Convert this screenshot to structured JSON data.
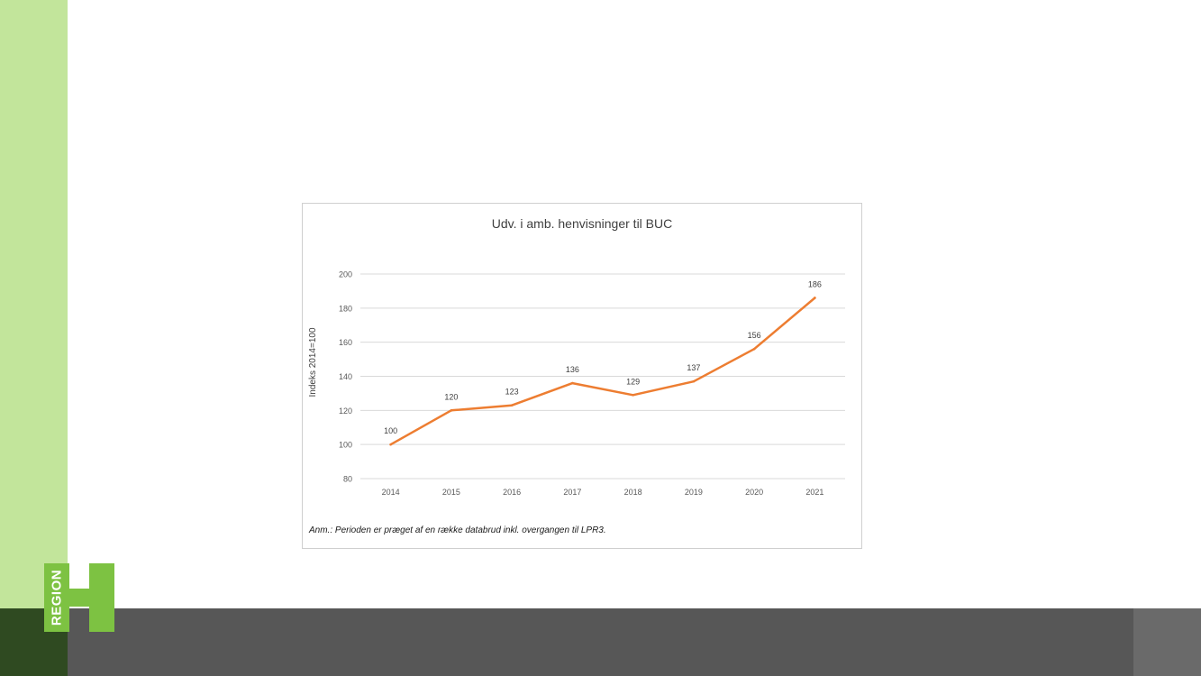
{
  "slide": {
    "logo_text": "REGION",
    "colors": {
      "accent": "#c2e59b",
      "footer": "#575757",
      "footer_left": "#2f4a21",
      "logo": "#7dc242"
    }
  },
  "chart_data": {
    "type": "line",
    "title": "Udv. i amb. henvisninger til BUC",
    "xlabel": "",
    "ylabel": "Indeks 2014=100",
    "categories": [
      "2014",
      "2015",
      "2016",
      "2017",
      "2018",
      "2019",
      "2020",
      "2021"
    ],
    "series": [
      {
        "values": [
          100,
          120,
          123,
          136,
          129,
          137,
          156,
          186
        ],
        "color": "#ed7d31"
      }
    ],
    "data_labels": [
      "100",
      "120",
      "123",
      "136",
      "129",
      "137",
      "156",
      "186"
    ],
    "ylim": [
      80,
      200
    ],
    "yticks": [
      80,
      100,
      120,
      140,
      160,
      180,
      200
    ],
    "grid": true,
    "legend": "none",
    "note": "Anm.: Perioden er præget af en række databrud inkl. overgangen til LPR3."
  }
}
